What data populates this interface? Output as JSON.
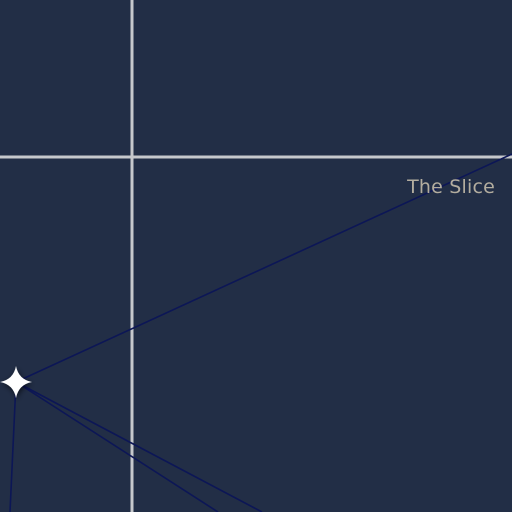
{
  "map": {
    "background_color": "#222e46",
    "road_color": "#c6c8cc",
    "route_line_color": "#0c1656",
    "marker_color": "#ffffff",
    "marker_icon": "four-point-star-icon",
    "labels": {
      "place": "The Slice"
    }
  }
}
